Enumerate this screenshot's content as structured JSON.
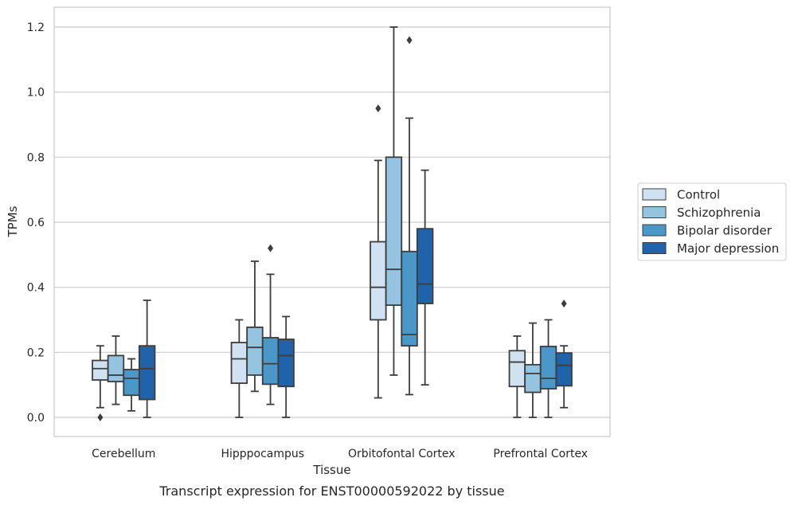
{
  "chart_data": {
    "type": "box",
    "title": "",
    "caption": "Transcript expression for ENST00000592022 by tissue",
    "xlabel": "Tissue",
    "ylabel": "TPMs",
    "ylim": [
      -0.06,
      1.26
    ],
    "yticks": [
      0.0,
      0.2,
      0.4,
      0.6,
      0.8,
      1.0,
      1.2
    ],
    "ytick_labels": [
      "0.0",
      "0.2",
      "0.4",
      "0.6",
      "0.8",
      "1.0",
      "1.2"
    ],
    "grid": true,
    "legend_position": "right",
    "categories": [
      "Cerebellum",
      "Hipppocampus",
      "Orbitofontal Cortex",
      "Prefrontal Cortex"
    ],
    "series": [
      {
        "name": "Control",
        "color": "#d0e1f2",
        "boxes": [
          {
            "min": 0.03,
            "q1": 0.115,
            "median": 0.15,
            "q3": 0.175,
            "max": 0.22,
            "outliers": [
              0.0
            ]
          },
          {
            "min": 0.0,
            "q1": 0.105,
            "median": 0.18,
            "q3": 0.23,
            "max": 0.3,
            "outliers": []
          },
          {
            "min": 0.06,
            "q1": 0.3,
            "median": 0.4,
            "q3": 0.54,
            "max": 0.79,
            "outliers": [
              0.95
            ]
          },
          {
            "min": 0.0,
            "q1": 0.095,
            "median": 0.17,
            "q3": 0.205,
            "max": 0.25,
            "outliers": []
          }
        ]
      },
      {
        "name": "Schizophrenia",
        "color": "#94c4df",
        "boxes": [
          {
            "min": 0.04,
            "q1": 0.11,
            "median": 0.13,
            "q3": 0.19,
            "max": 0.25,
            "outliers": []
          },
          {
            "min": 0.08,
            "q1": 0.13,
            "median": 0.215,
            "q3": 0.277,
            "max": 0.48,
            "outliers": []
          },
          {
            "min": 0.13,
            "q1": 0.345,
            "median": 0.455,
            "q3": 0.8,
            "max": 1.2,
            "outliers": []
          },
          {
            "min": 0.0,
            "q1": 0.077,
            "median": 0.135,
            "q3": 0.162,
            "max": 0.29,
            "outliers": []
          }
        ]
      },
      {
        "name": "Bipolar disorder",
        "color": "#4a98c9",
        "boxes": [
          {
            "min": 0.02,
            "q1": 0.068,
            "median": 0.12,
            "q3": 0.147,
            "max": 0.18,
            "outliers": []
          },
          {
            "min": 0.04,
            "q1": 0.102,
            "median": 0.165,
            "q3": 0.245,
            "max": 0.44,
            "outliers": [
              0.52
            ]
          },
          {
            "min": 0.07,
            "q1": 0.22,
            "median": 0.255,
            "q3": 0.51,
            "max": 0.92,
            "outliers": [
              1.16
            ]
          },
          {
            "min": 0.0,
            "q1": 0.088,
            "median": 0.12,
            "q3": 0.218,
            "max": 0.3,
            "outliers": []
          }
        ]
      },
      {
        "name": "Major depression",
        "color": "#2163aa",
        "boxes": [
          {
            "min": 0.0,
            "q1": 0.055,
            "median": 0.15,
            "q3": 0.22,
            "max": 0.36,
            "outliers": []
          },
          {
            "min": 0.0,
            "q1": 0.095,
            "median": 0.19,
            "q3": 0.24,
            "max": 0.31,
            "outliers": []
          },
          {
            "min": 0.1,
            "q1": 0.35,
            "median": 0.41,
            "q3": 0.58,
            "max": 0.76,
            "outliers": []
          },
          {
            "min": 0.03,
            "q1": 0.097,
            "median": 0.16,
            "q3": 0.198,
            "max": 0.22,
            "outliers": [
              0.35
            ]
          }
        ]
      }
    ]
  }
}
